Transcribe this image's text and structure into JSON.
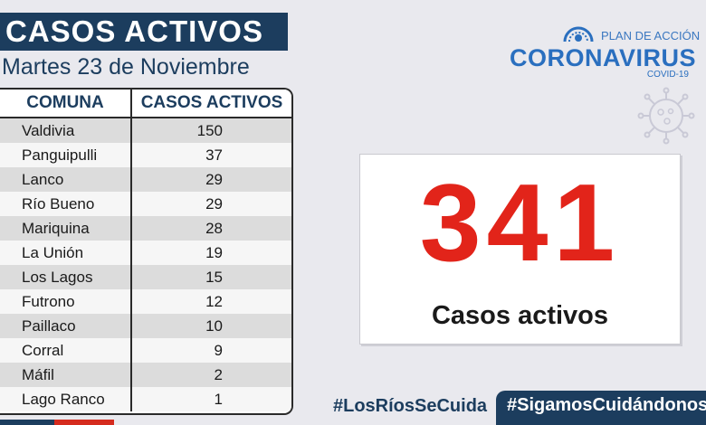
{
  "header": {
    "title": "CASOS ACTIVOS",
    "date": "Martes 23 de Noviembre"
  },
  "table": {
    "headers": [
      "COMUNA",
      "CASOS ACTIVOS"
    ],
    "rows": [
      {
        "comuna": "Valdivia",
        "casos": "150"
      },
      {
        "comuna": "Panguipulli",
        "casos": "37"
      },
      {
        "comuna": "Lanco",
        "casos": "29"
      },
      {
        "comuna": "Río Bueno",
        "casos": "29"
      },
      {
        "comuna": "Mariquina",
        "casos": "28"
      },
      {
        "comuna": "La Unión",
        "casos": "19"
      },
      {
        "comuna": "Los Lagos",
        "casos": "15"
      },
      {
        "comuna": "Futrono",
        "casos": "12"
      },
      {
        "comuna": "Paillaco",
        "casos": "10"
      },
      {
        "comuna": "Corral",
        "casos": "9"
      },
      {
        "comuna": "Máfil",
        "casos": "2"
      },
      {
        "comuna": "Lago Ranco",
        "casos": "1"
      }
    ]
  },
  "logo": {
    "plan": "PLAN DE ACCIÓN",
    "name": "CORONAVIRUS",
    "sub": "COVID-19"
  },
  "summary": {
    "total": "341",
    "label": "Casos activos"
  },
  "hashtags": {
    "first": "#LosRíosSeCuida",
    "second": "#SigamosCuidándonos"
  },
  "colors": {
    "navy": "#1c3d5e",
    "red": "#e2241a",
    "blue": "#2a6fbf"
  },
  "icons": [
    "government-logo-icon",
    "virus-icon"
  ]
}
